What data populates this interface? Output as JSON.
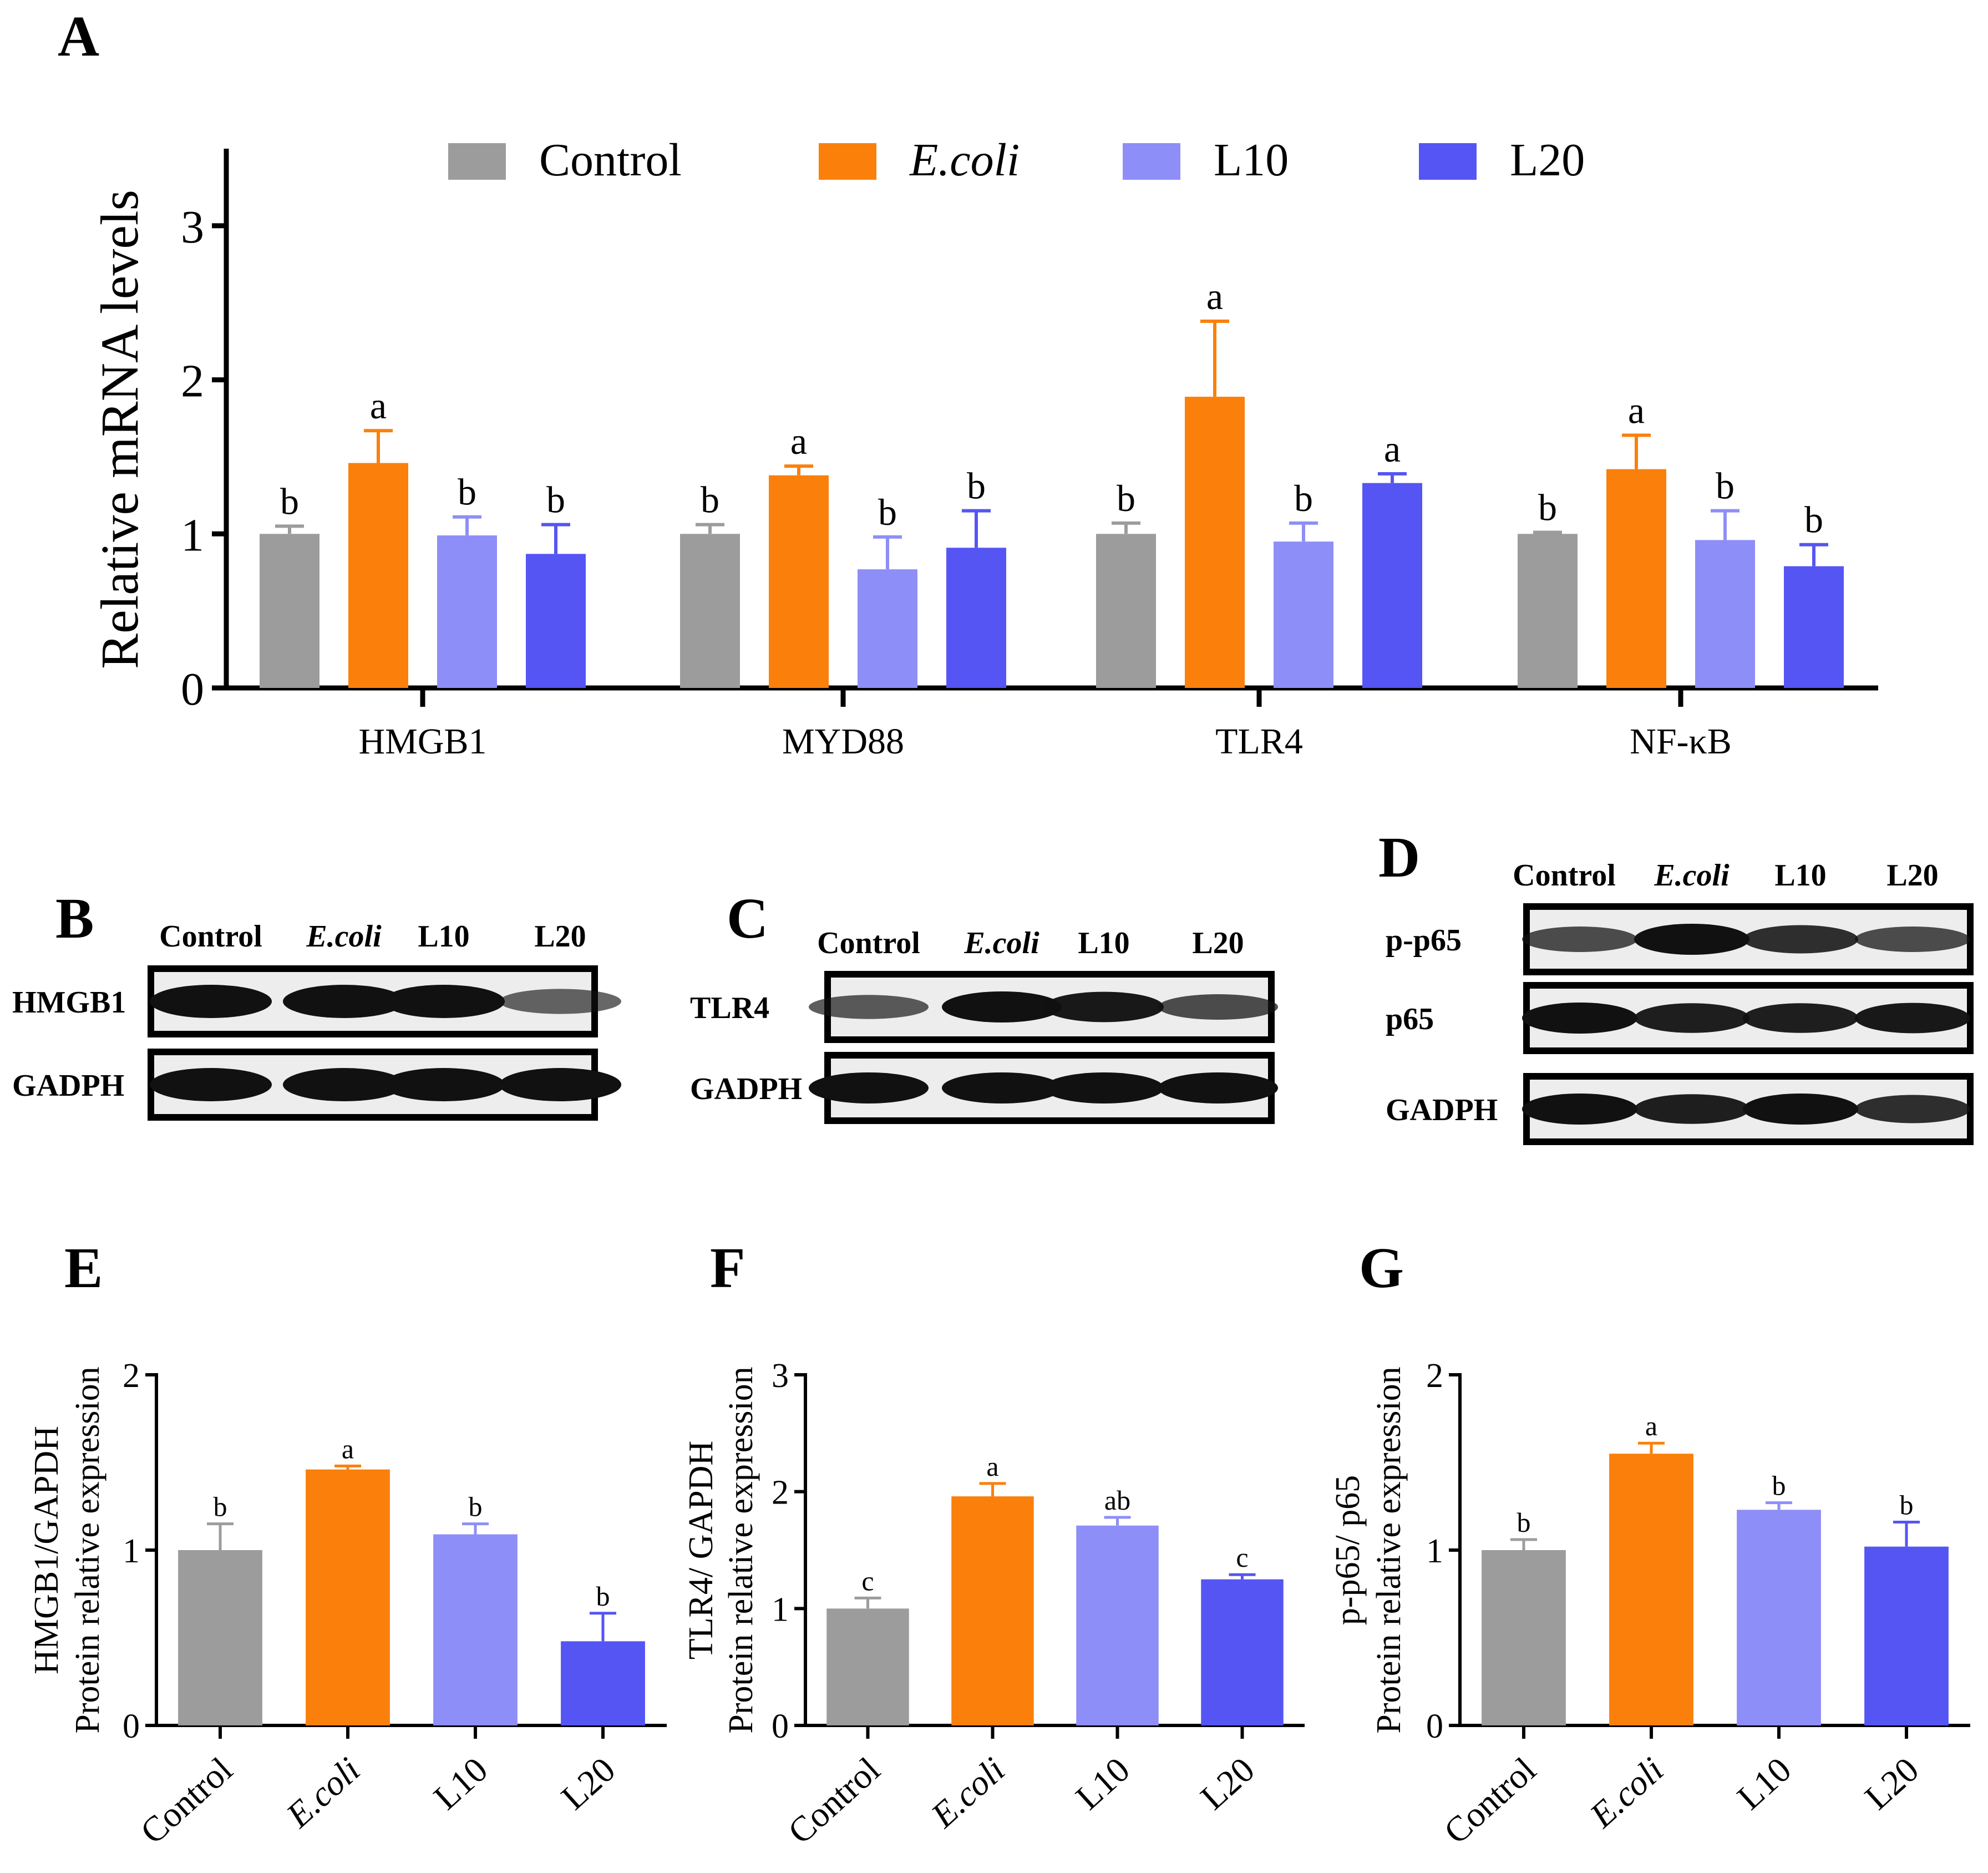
{
  "colors": {
    "Control": "#9c9c9c",
    "E.coli": "#fa800b",
    "L10": "#8e8ef8",
    "L20": "#5555f4",
    "axis": "#000000"
  },
  "panels": {
    "A": "A",
    "B": "B",
    "C": "C",
    "D": "D",
    "E": "E",
    "F": "F",
    "G": "G"
  },
  "chart_data": [
    {
      "id": "A",
      "type": "bar",
      "ylabel": "Relative mRNA levels",
      "xlabel": "",
      "ylim": [
        0,
        3.5
      ],
      "yticks": [
        "0",
        "1",
        "2",
        "3"
      ],
      "yticks_values": [
        0,
        1,
        2,
        3
      ],
      "legend": {
        "placement": "top",
        "entries": [
          {
            "label": "Control",
            "italic": false
          },
          {
            "label": "E.coli",
            "italic": true
          },
          {
            "label": "L10",
            "italic": false
          },
          {
            "label": "L20",
            "italic": false
          }
        ]
      },
      "categories": [
        "HMGB1",
        "MYD88",
        "TLR4",
        "NF-κB"
      ],
      "series": [
        {
          "name": "Control",
          "values": [
            1.0,
            1.0,
            1.0,
            1.0
          ],
          "errors": [
            0.05,
            0.06,
            0.07,
            0.01
          ],
          "letters": [
            "b",
            "b",
            "b",
            "b"
          ]
        },
        {
          "name": "E.coli",
          "values": [
            1.46,
            1.38,
            1.89,
            1.42
          ],
          "errors": [
            0.21,
            0.06,
            0.49,
            0.22
          ],
          "letters": [
            "a",
            "a",
            "a",
            "a"
          ]
        },
        {
          "name": "L10",
          "values": [
            0.99,
            0.77,
            0.95,
            0.96
          ],
          "errors": [
            0.12,
            0.21,
            0.12,
            0.19
          ],
          "letters": [
            "b",
            "b",
            "b",
            "b"
          ]
        },
        {
          "name": "L20",
          "values": [
            0.87,
            0.91,
            1.33,
            0.79
          ],
          "errors": [
            0.19,
            0.24,
            0.06,
            0.14
          ],
          "letters": [
            "b",
            "b",
            "a",
            "b"
          ]
        }
      ]
    },
    {
      "id": "E",
      "type": "bar",
      "ylabel_line1": "HMGB1/GAPDH",
      "ylabel_line2": "Protein relative expression",
      "ylim": [
        0,
        2
      ],
      "yticks": [
        "0",
        "1",
        "2"
      ],
      "yticks_values": [
        0,
        1,
        2
      ],
      "categories": [
        "Control",
        "E.coli",
        "L10",
        "L20"
      ],
      "values": [
        1.0,
        1.46,
        1.09,
        0.48
      ],
      "errors": [
        0.15,
        0.02,
        0.06,
        0.16
      ],
      "letters": [
        "b",
        "a",
        "b",
        "b"
      ]
    },
    {
      "id": "F",
      "type": "bar",
      "ylabel_line1": "TLR4/ GAPDH",
      "ylabel_line2": "Protein relative expression",
      "ylim": [
        0,
        3
      ],
      "yticks": [
        "0",
        "1",
        "2",
        "3"
      ],
      "yticks_values": [
        0,
        1,
        2,
        3
      ],
      "categories": [
        "Control",
        "E.coli",
        "L10",
        "L20"
      ],
      "values": [
        1.0,
        1.96,
        1.71,
        1.25
      ],
      "errors": [
        0.09,
        0.11,
        0.07,
        0.04
      ],
      "letters": [
        "c",
        "a",
        "ab",
        "c"
      ]
    },
    {
      "id": "G",
      "type": "bar",
      "ylabel_line1": "p-p65/ p65",
      "ylabel_line2": "Protein relative expression",
      "ylim": [
        0,
        2
      ],
      "yticks": [
        "0",
        "1",
        "2"
      ],
      "yticks_values": [
        0,
        1,
        2
      ],
      "categories": [
        "Control",
        "E.coli",
        "L10",
        "L20"
      ],
      "values": [
        1.0,
        1.55,
        1.23,
        1.02
      ],
      "errors": [
        0.06,
        0.06,
        0.04,
        0.14
      ],
      "letters": [
        "b",
        "a",
        "b",
        "b"
      ]
    }
  ],
  "blots": {
    "B": {
      "headers": [
        "Control",
        "E.coli",
        "L10",
        "L20"
      ],
      "rows": [
        "HMGB1",
        "GADPH"
      ],
      "intensity": [
        [
          1.0,
          1.0,
          1.0,
          0.45
        ],
        [
          1.0,
          1.0,
          1.0,
          1.0
        ]
      ]
    },
    "C": {
      "headers": [
        "Control",
        "E.coli",
        "L10",
        "L20"
      ],
      "rows": [
        "TLR4",
        "GADPH"
      ],
      "intensity": [
        [
          0.5,
          1.0,
          0.95,
          0.6
        ],
        [
          1.0,
          1.0,
          1.0,
          1.0
        ]
      ]
    },
    "D": {
      "headers": [
        "Control",
        "E.coli",
        "L10",
        "L20"
      ],
      "rows": [
        "p-p65",
        "p65",
        "GADPH"
      ],
      "intensity": [
        [
          0.6,
          1.0,
          0.8,
          0.6
        ],
        [
          1.0,
          0.9,
          0.9,
          0.95
        ],
        [
          1.0,
          0.9,
          1.0,
          0.8
        ]
      ]
    }
  }
}
